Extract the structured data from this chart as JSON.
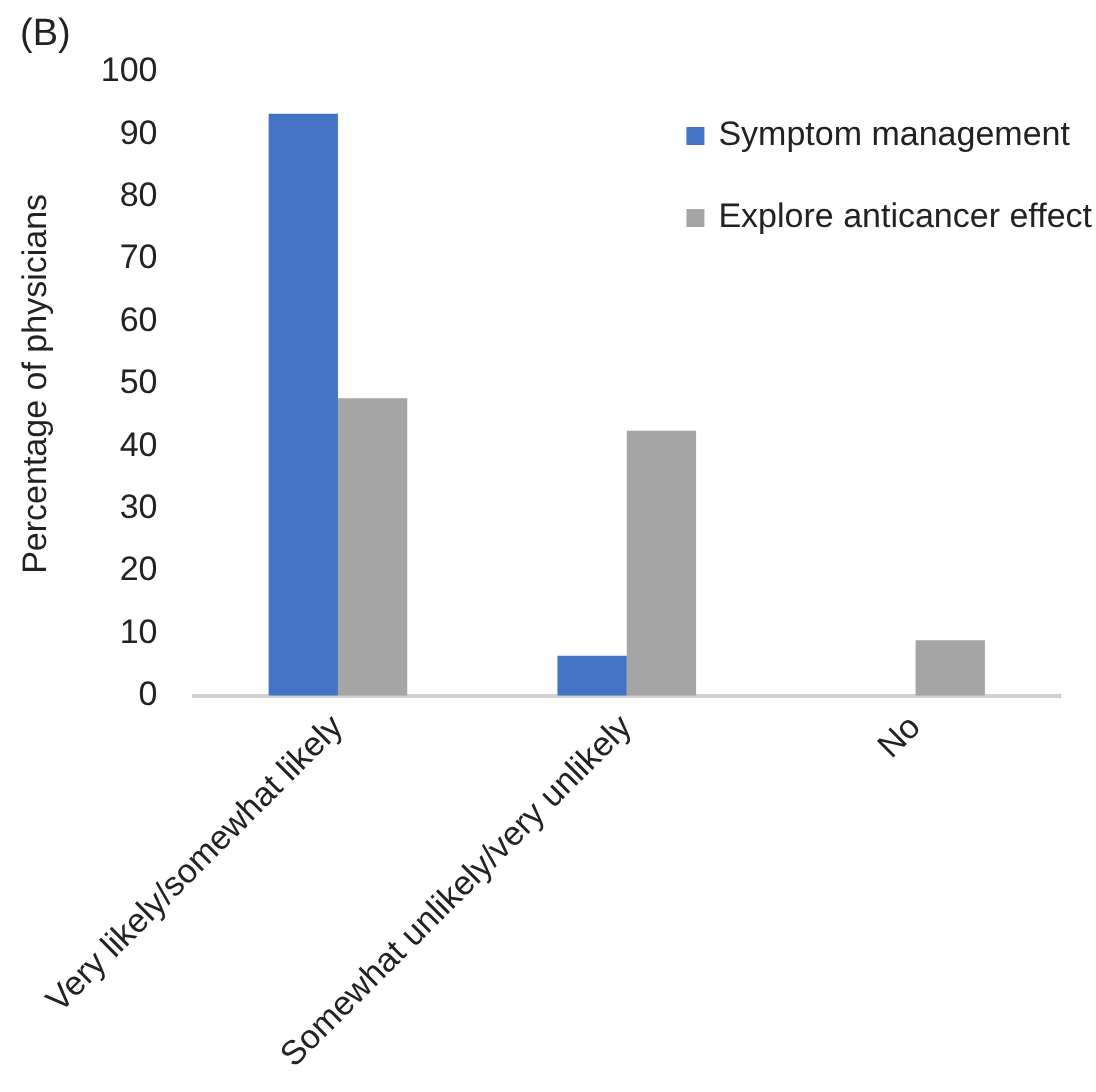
{
  "chart_data": {
    "type": "bar",
    "title": "(B)",
    "ylabel": "Percentage of physicians",
    "categories": [
      "Very likely/somewhat likely",
      "Somewhat unlikely/very unlikely",
      "No"
    ],
    "series": [
      {
        "name": "Symptom management",
        "color": "#4472c4",
        "values": [
          93.3,
          6.4,
          0
        ]
      },
      {
        "name": "Explore anticancer effect",
        "color": "#a5a5a5",
        "values": [
          47.7,
          42.5,
          8.9
        ]
      }
    ],
    "ylim": [
      0,
      100
    ],
    "yticks": [
      0,
      10,
      20,
      30,
      40,
      50,
      60,
      70,
      80,
      90,
      100
    ],
    "grid": false,
    "legend": "top right"
  }
}
